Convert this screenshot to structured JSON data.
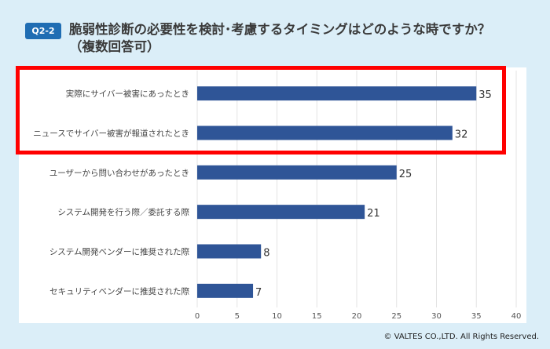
{
  "header": {
    "badge": "Q2-2",
    "title_line1": "脆弱性診断の必要性を検討･考慮するタイミングはどのような時ですか？",
    "title_line2": "（複数回答可）"
  },
  "colors": {
    "bar": "#2f5597",
    "highlight": "#ff0000",
    "badge": "#1f6db3",
    "background": "#dbeef8"
  },
  "chart_data": {
    "type": "bar",
    "orientation": "horizontal",
    "categories": [
      "実際にサイバー被害にあったとき",
      "ニュースでサイバー被害が報道されたとき",
      "ユーザーから問い合わせがあったとき",
      "システム開発を行う際／委託する際",
      "システム開発ベンダーに推奨された際",
      "セキュリティベンダーに推奨された際"
    ],
    "values": [
      35,
      32,
      25,
      21,
      8,
      7
    ],
    "xlim": [
      0,
      40
    ],
    "xticks": [
      0,
      5,
      10,
      15,
      20,
      25,
      30,
      35,
      40
    ],
    "grid": true,
    "highlighted_categories": [
      0,
      1
    ]
  },
  "footer": {
    "copyright": "© VALTES CO.,LTD. All Rights Reserved."
  }
}
